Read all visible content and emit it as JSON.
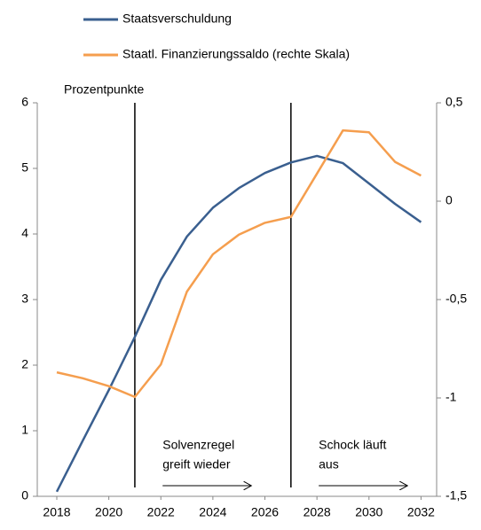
{
  "chart_data": {
    "type": "line",
    "x": [
      2018,
      2019,
      2020,
      2021,
      2022,
      2023,
      2024,
      2025,
      2026,
      2027,
      2028,
      2029,
      2030,
      2031,
      2032
    ],
    "series": [
      {
        "name": "Staatsverschuldung",
        "color": "#3a5f8f",
        "values": [
          0.07,
          0.85,
          1.62,
          2.43,
          3.3,
          3.96,
          4.4,
          4.7,
          4.93,
          5.09,
          5.19,
          5.08,
          4.77,
          4.46,
          4.18
        ]
      },
      {
        "name": "Staatl. Finanzierungssaldo (rechte Skala)",
        "color": "#f59e4e",
        "axis": "y2",
        "values": [
          -0.87,
          -0.9,
          -0.94,
          -0.995,
          -0.83,
          -0.46,
          -0.27,
          -0.17,
          -0.11,
          -0.08,
          0.14,
          0.36,
          0.35,
          0.2,
          0.13
        ]
      }
    ],
    "xlim": [
      2017.25,
      2032.6
    ],
    "xticks": [
      2018,
      2020,
      2022,
      2024,
      2026,
      2028,
      2030,
      2032
    ],
    "ylim": [
      0,
      6
    ],
    "yticks": [
      0,
      1,
      2,
      3,
      4,
      5,
      6
    ],
    "y2lim": [
      -1.5,
      0.5
    ],
    "y2ticks": [
      {
        "value": -1.5,
        "label": "-1,5"
      },
      -1,
      {
        "value": -0.5,
        "label": "-0,5"
      },
      0,
      {
        "value": 0.5,
        "label": "0,5"
      }
    ],
    "ylabel": "Prozentpunkte",
    "vlines": [
      2021,
      2027
    ],
    "annotations": [
      {
        "x": 2022,
        "lines": [
          "Solvenzregel",
          "greift wieder"
        ]
      },
      {
        "x": 2028,
        "lines": [
          "Schock läuft",
          "aus"
        ]
      }
    ]
  }
}
